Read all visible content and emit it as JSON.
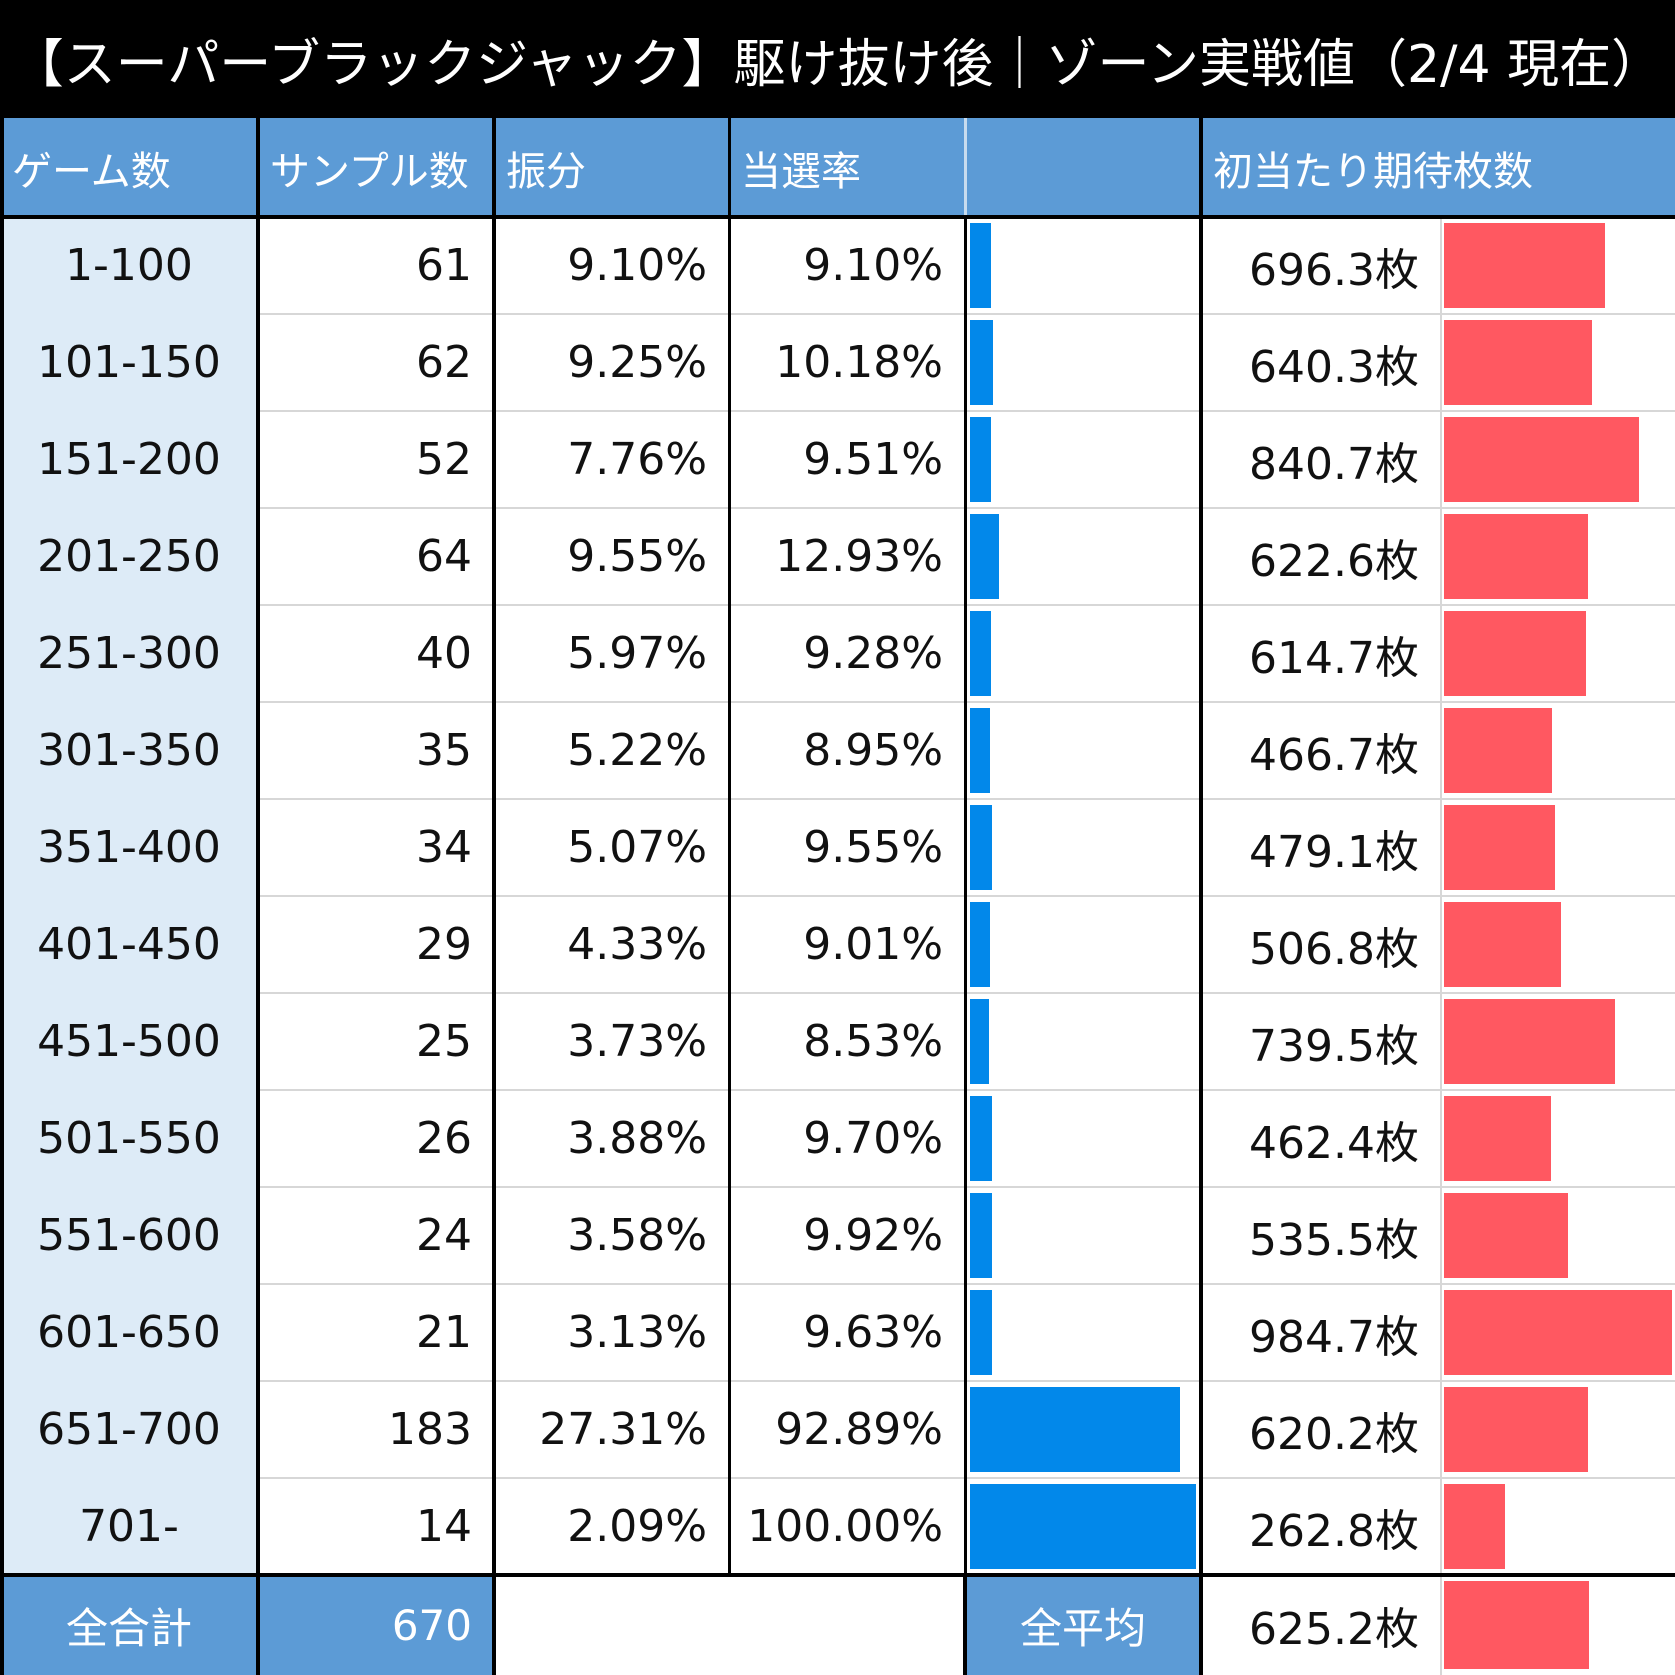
{
  "title": "【スーパーブラックジャック】駆け抜け後｜ゾーン実戦値（2/4 現在）",
  "chart_data": {
    "type": "table",
    "columns": [
      "ゲーム数",
      "サンプル数",
      "振分",
      "当選率",
      "",
      "初当たり期待枚数"
    ],
    "rows": [
      {
        "games": "1-100",
        "samples": "61",
        "share": "9.10%",
        "rate": "9.10%",
        "rate_value": 9.1,
        "expected": "696.3枚",
        "expected_value": 696.3
      },
      {
        "games": "101-150",
        "samples": "62",
        "share": "9.25%",
        "rate": "10.18%",
        "rate_value": 10.18,
        "expected": "640.3枚",
        "expected_value": 640.3
      },
      {
        "games": "151-200",
        "samples": "52",
        "share": "7.76%",
        "rate": "9.51%",
        "rate_value": 9.51,
        "expected": "840.7枚",
        "expected_value": 840.7
      },
      {
        "games": "201-250",
        "samples": "64",
        "share": "9.55%",
        "rate": "12.93%",
        "rate_value": 12.93,
        "expected": "622.6枚",
        "expected_value": 622.6
      },
      {
        "games": "251-300",
        "samples": "40",
        "share": "5.97%",
        "rate": "9.28%",
        "rate_value": 9.28,
        "expected": "614.7枚",
        "expected_value": 614.7
      },
      {
        "games": "301-350",
        "samples": "35",
        "share": "5.22%",
        "rate": "8.95%",
        "rate_value": 8.95,
        "expected": "466.7枚",
        "expected_value": 466.7
      },
      {
        "games": "351-400",
        "samples": "34",
        "share": "5.07%",
        "rate": "9.55%",
        "rate_value": 9.55,
        "expected": "479.1枚",
        "expected_value": 479.1
      },
      {
        "games": "401-450",
        "samples": "29",
        "share": "4.33%",
        "rate": "9.01%",
        "rate_value": 9.01,
        "expected": "506.8枚",
        "expected_value": 506.8
      },
      {
        "games": "451-500",
        "samples": "25",
        "share": "3.73%",
        "rate": "8.53%",
        "rate_value": 8.53,
        "expected": "739.5枚",
        "expected_value": 739.5
      },
      {
        "games": "501-550",
        "samples": "26",
        "share": "3.88%",
        "rate": "9.70%",
        "rate_value": 9.7,
        "expected": "462.4枚",
        "expected_value": 462.4
      },
      {
        "games": "551-600",
        "samples": "24",
        "share": "3.58%",
        "rate": "9.92%",
        "rate_value": 9.92,
        "expected": "535.5枚",
        "expected_value": 535.5
      },
      {
        "games": "601-650",
        "samples": "21",
        "share": "3.13%",
        "rate": "9.63%",
        "rate_value": 9.63,
        "expected": "984.7枚",
        "expected_value": 984.7
      },
      {
        "games": "651-700",
        "samples": "183",
        "share": "27.31%",
        "rate": "92.89%",
        "rate_value": 92.89,
        "expected": "620.2枚",
        "expected_value": 620.2
      },
      {
        "games": "701-",
        "samples": "14",
        "share": "2.09%",
        "rate": "100.00%",
        "rate_value": 100.0,
        "expected": "262.8枚",
        "expected_value": 262.8
      }
    ],
    "total": {
      "label": "全合計",
      "samples": "670"
    },
    "average": {
      "label": "全平均",
      "expected": "625.2枚",
      "expected_value": 625.2
    },
    "colors": {
      "header": "#5c9bd6",
      "label_bg": "#ddebf7",
      "rate_bar": "#0288ea",
      "expected_bar": "#ff5861"
    }
  }
}
